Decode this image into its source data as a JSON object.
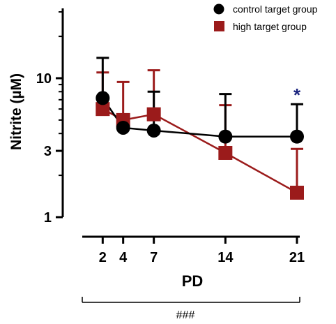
{
  "chart_data": {
    "type": "line",
    "ylabel": "Nitrite (µM)",
    "xlabel": "PD",
    "y_scale": "log",
    "ylim": [
      1,
      30
    ],
    "y_ticks": [
      1,
      3,
      10
    ],
    "y_tick_labels": [
      "1",
      "3",
      "10"
    ],
    "x_ticks": [
      2,
      4,
      7,
      14,
      21
    ],
    "x_tick_labels": [
      "2",
      "4",
      "7",
      "14",
      "21"
    ],
    "xlim": [
      0,
      21
    ],
    "legend_position": "top-right",
    "series": [
      {
        "name": "control target group",
        "color": "#000000",
        "marker": "circle",
        "x": [
          2,
          4,
          7,
          14,
          21
        ],
        "y": [
          7.2,
          4.4,
          4.2,
          3.8,
          3.8
        ],
        "error_upper": [
          14.0,
          4.4,
          8.0,
          7.7,
          6.5
        ]
      },
      {
        "name": "high target group",
        "color": "#9b1b1b",
        "marker": "square",
        "x": [
          2,
          4,
          7,
          14,
          21
        ],
        "y": [
          6.0,
          5.0,
          5.5,
          2.9,
          1.5
        ],
        "error_upper": [
          11.0,
          9.4,
          11.4,
          6.4,
          3.1
        ]
      }
    ],
    "annotations": [
      {
        "text": "*",
        "x": 21,
        "color": "#1a237e"
      }
    ],
    "bracket_label": "###"
  }
}
